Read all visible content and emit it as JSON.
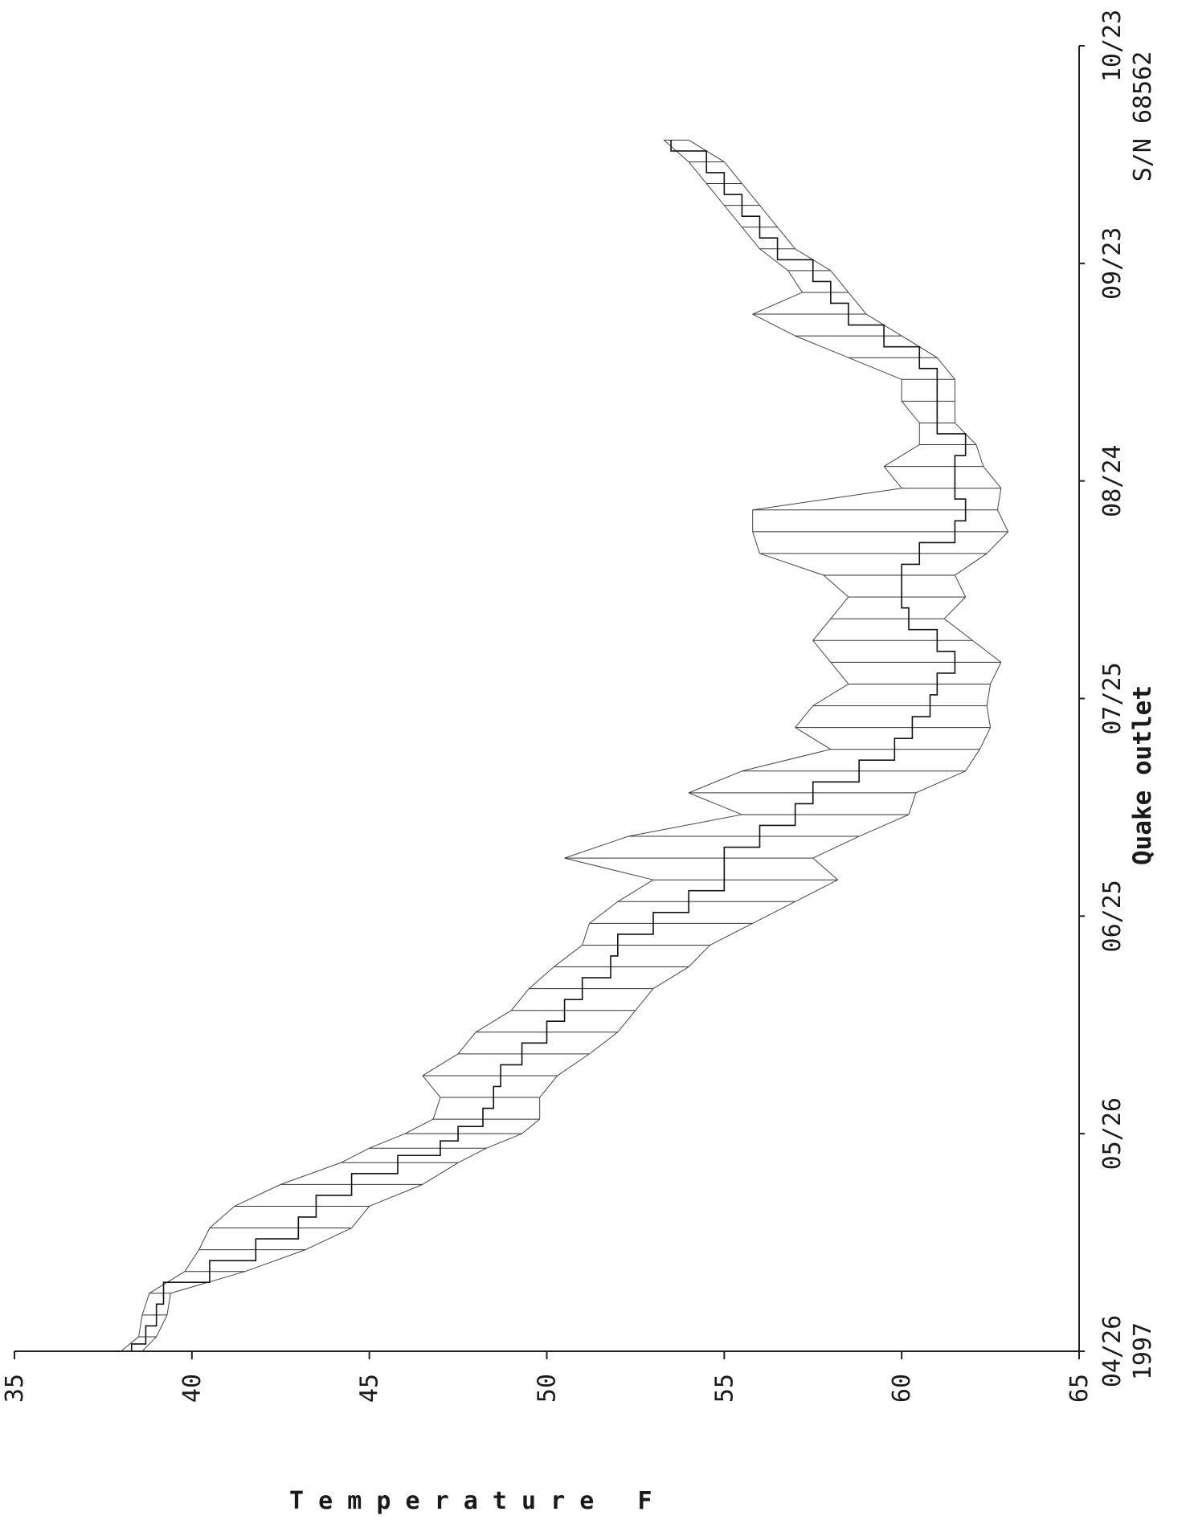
{
  "chart_data": {
    "type": "line",
    "orientation": "rotated-90",
    "title": "Quake outlet",
    "serial": "S/N 68562",
    "year_label": "1997",
    "xlabel": "",
    "ylabel": "T e m p e r a t u r e   F",
    "ylim": [
      35,
      65
    ],
    "y_ticks": [
      35,
      40,
      45,
      50,
      55,
      60,
      65
    ],
    "xlim": [
      "1997-04-26",
      "1997-10-23"
    ],
    "x_ticks": [
      "04/26",
      "05/26",
      "06/25",
      "07/25",
      "08/24",
      "09/23",
      "10/23"
    ],
    "grid": false,
    "series": [
      {
        "x": [
          "1997-04-26",
          "1997-04-28",
          "1997-05-01",
          "1997-05-04",
          "1997-05-07",
          "1997-05-10",
          "1997-05-13",
          "1997-05-16",
          "1997-05-19",
          "1997-05-22",
          "1997-05-24",
          "1997-05-26",
          "1997-05-28",
          "1997-05-31",
          "1997-06-03",
          "1997-06-06",
          "1997-06-09",
          "1997-06-12",
          "1997-06-15",
          "1997-06-18",
          "1997-06-21",
          "1997-06-24",
          "1997-06-27",
          "1997-06-30",
          "1997-07-03",
          "1997-07-06",
          "1997-07-09",
          "1997-07-12",
          "1997-07-15",
          "1997-07-18",
          "1997-07-21",
          "1997-07-24",
          "1997-07-27",
          "1997-07-30",
          "1997-08-02",
          "1997-08-05",
          "1997-08-08",
          "1997-08-11",
          "1997-08-14",
          "1997-08-17",
          "1997-08-20",
          "1997-08-23",
          "1997-08-26",
          "1997-08-29",
          "1997-09-01",
          "1997-09-04",
          "1997-09-07",
          "1997-09-10",
          "1997-09-13",
          "1997-09-16",
          "1997-09-19",
          "1997-09-22",
          "1997-09-25",
          "1997-09-28",
          "1997-10-01",
          "1997-10-04",
          "1997-10-07",
          "1997-10-10"
        ],
        "mean": [
          38.3,
          38.7,
          39.0,
          39.2,
          40.5,
          41.8,
          43.0,
          43.5,
          44.5,
          45.8,
          47.0,
          47.5,
          48.2,
          48.5,
          48.7,
          49.3,
          50.0,
          50.5,
          51.0,
          51.8,
          52.0,
          53.0,
          54.0,
          55.0,
          55.0,
          56.0,
          57.0,
          57.5,
          58.8,
          59.8,
          60.3,
          60.8,
          61.0,
          61.5,
          61.0,
          60.2,
          60.0,
          60.0,
          60.5,
          61.5,
          61.8,
          61.5,
          61.5,
          61.8,
          61.0,
          61.0,
          61.0,
          60.5,
          59.5,
          58.5,
          58.0,
          57.5,
          56.5,
          56.0,
          55.5,
          55.0,
          54.5,
          53.5
        ],
        "high": [
          38.6,
          39.0,
          39.3,
          39.4,
          41.5,
          43.2,
          44.5,
          45.0,
          46.5,
          47.5,
          48.3,
          49.3,
          49.8,
          49.8,
          50.3,
          51.2,
          52.0,
          52.5,
          53.0,
          54.0,
          54.6,
          55.8,
          57.0,
          58.2,
          57.5,
          58.8,
          60.2,
          60.4,
          61.8,
          62.2,
          62.5,
          62.4,
          62.5,
          62.8,
          62.0,
          61.2,
          61.8,
          61.5,
          62.4,
          63.0,
          62.7,
          62.8,
          62.3,
          62.1,
          61.5,
          61.5,
          61.5,
          61.0,
          60.0,
          59.0,
          58.5,
          58.0,
          57.0,
          56.5,
          56.0,
          55.5,
          55.0,
          54.0
        ],
        "low": [
          38.0,
          38.5,
          38.6,
          38.8,
          39.8,
          40.2,
          40.5,
          41.2,
          42.5,
          44.2,
          45.0,
          46.0,
          46.8,
          47.0,
          46.5,
          47.5,
          48.0,
          49.0,
          49.5,
          50.2,
          51.0,
          51.2,
          52.0,
          53.0,
          50.5,
          52.3,
          55.5,
          54.0,
          55.5,
          58.0,
          57.0,
          57.5,
          58.5,
          58.0,
          57.5,
          58.0,
          58.5,
          57.8,
          56.0,
          55.8,
          55.8,
          60.0,
          59.5,
          60.5,
          60.5,
          60.0,
          60.0,
          58.5,
          57.0,
          55.8,
          57.2,
          56.8,
          56.0,
          55.5,
          55.0,
          54.5,
          54.0,
          53.3
        ]
      }
    ]
  }
}
